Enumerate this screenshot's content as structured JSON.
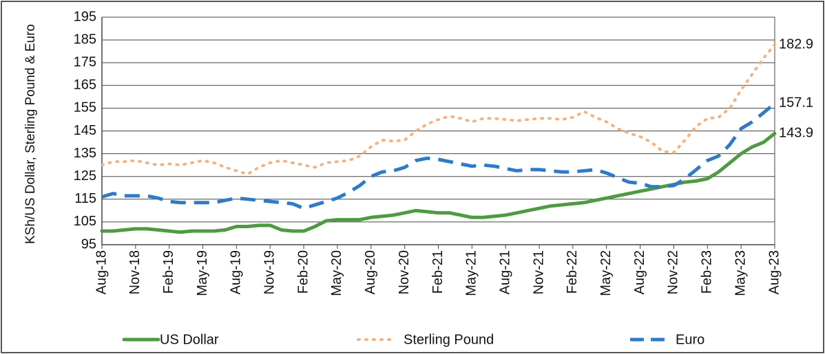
{
  "chart_data": {
    "type": "line",
    "y_label": "KSh/US Dollar, Sterling Pound & Euro",
    "categories": [
      "Aug-18",
      null,
      null,
      "Nov-18",
      null,
      null,
      "Feb-19",
      null,
      null,
      "May-19",
      null,
      null,
      "Aug-19",
      null,
      null,
      "Nov-19",
      null,
      null,
      "Feb-20",
      null,
      null,
      "May-20",
      null,
      null,
      "Aug-20",
      null,
      null,
      "Nov-20",
      null,
      null,
      "Feb-21",
      null,
      null,
      "May-21",
      null,
      null,
      "Aug-21",
      null,
      null,
      "Nov-21",
      null,
      null,
      "Feb-22",
      null,
      null,
      "May-22",
      null,
      null,
      "Aug-22",
      null,
      null,
      "Nov-22",
      null,
      null,
      "Feb-23",
      null,
      null,
      "May-23",
      null,
      null,
      "Aug-23"
    ],
    "series": [
      {
        "name": "US Dollar",
        "color": "#4f9a42",
        "style": "solid",
        "values": [
          101,
          101,
          101.5,
          102,
          102,
          101.5,
          101,
          100.5,
          101,
          101,
          101,
          101.5,
          103,
          103,
          103.5,
          103.5,
          101.5,
          101,
          101,
          103,
          105.5,
          106,
          106,
          106,
          107,
          107.5,
          108,
          109,
          110,
          109.5,
          109,
          109,
          108,
          107,
          107,
          107.5,
          108,
          109,
          110,
          111,
          112,
          112.5,
          113,
          113.5,
          114.5,
          115.5,
          116.5,
          117.5,
          118.5,
          119.5,
          120.5,
          121.5,
          122.5,
          123,
          124,
          127,
          131,
          135,
          138,
          140,
          143.9
        ]
      },
      {
        "name": "Sterling Pound",
        "color": "#f5b27e",
        "style": "dotted",
        "values": [
          130,
          131.5,
          131.5,
          132,
          131,
          130,
          130.5,
          130,
          131,
          132,
          131,
          129,
          127.5,
          126,
          129,
          131,
          132,
          131,
          130,
          129,
          131,
          131.5,
          132,
          134,
          138,
          141,
          140.5,
          141,
          145,
          148,
          150,
          151.5,
          150.5,
          149,
          150.5,
          150.5,
          150,
          149.5,
          150,
          150.5,
          150.5,
          150,
          151,
          153.5,
          151,
          149,
          146,
          144,
          142.5,
          140,
          136,
          135.5,
          141,
          147,
          150.5,
          151,
          155,
          163,
          170,
          177,
          182.9
        ]
      },
      {
        "name": "Euro",
        "color": "#2f7bc6",
        "style": "dashed",
        "values": [
          116,
          117.5,
          116.5,
          116.5,
          116.5,
          115.5,
          114,
          113.5,
          113.5,
          113.5,
          113.5,
          114.5,
          115.5,
          115,
          114.5,
          114,
          113.5,
          113,
          111,
          112.5,
          114,
          115.5,
          118,
          121,
          125,
          127,
          127.5,
          129,
          132,
          133,
          132.5,
          131.5,
          130.5,
          129.5,
          130,
          129.5,
          128.5,
          127.5,
          128,
          128,
          127.5,
          127,
          127,
          127.5,
          128,
          126.5,
          124.5,
          122.5,
          122,
          120.5,
          120.5,
          121,
          124,
          128,
          132,
          134,
          139,
          146,
          149,
          153,
          157.1
        ]
      }
    ],
    "ylim": [
      95,
      195
    ],
    "yticks": [
      95,
      105,
      115,
      125,
      135,
      145,
      155,
      165,
      175,
      185,
      195
    ],
    "grid": true,
    "legend": "bottom"
  }
}
